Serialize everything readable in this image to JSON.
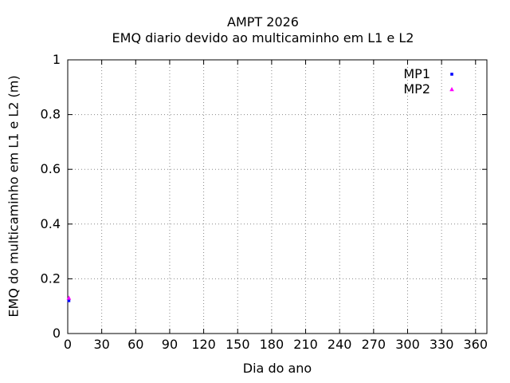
{
  "chart_data": {
    "type": "scatter",
    "title": "AMPT 2026",
    "subtitle": "EMQ diario devido ao multicaminho em L1 e L2",
    "xlabel": "Dia do ano",
    "ylabel": "EMQ do multicaminho em L1 e L2 (m)",
    "xlim": [
      0,
      370
    ],
    "ylim": [
      0,
      1
    ],
    "xticks": [
      0,
      30,
      60,
      90,
      120,
      150,
      180,
      210,
      240,
      270,
      300,
      330,
      360
    ],
    "yticks": [
      0,
      0.2,
      0.4,
      0.6,
      0.8,
      1
    ],
    "grid": true,
    "grid_style": "dotted",
    "grid_color": "#888888",
    "legend_position": "top-right-inside",
    "series": [
      {
        "name": "MP1",
        "color": "#0000ff",
        "marker": "square",
        "points": [
          {
            "x": 1,
            "y": 0.12
          }
        ]
      },
      {
        "name": "MP2",
        "color": "#ff00ff",
        "marker": "triangle",
        "points": [
          {
            "x": 1,
            "y": 0.13
          }
        ]
      }
    ]
  }
}
